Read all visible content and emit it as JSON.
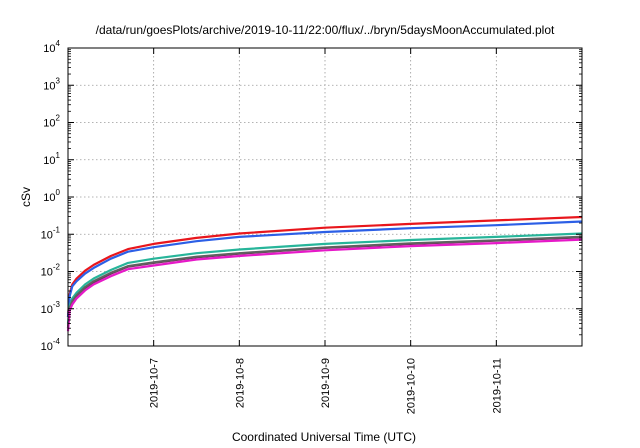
{
  "chart_data": {
    "type": "line",
    "title": "/data/run/goesPlots/archive/2019-10-11/22:00/flux/../bryn/5daysMoonAccumulated.plot",
    "xlabel": "Coordinated Universal Time (UTC)",
    "ylabel": "cSv",
    "y_scale": "log",
    "ylim": [
      0.0001,
      10000
    ],
    "xlim": [
      0,
      6
    ],
    "grid": true,
    "legend": "none",
    "x_ticks": [
      {
        "value": 1,
        "label": "2019-10-7"
      },
      {
        "value": 2,
        "label": "2019-10-8"
      },
      {
        "value": 3,
        "label": "2019-10-9"
      },
      {
        "value": 4,
        "label": "2019-10-10"
      },
      {
        "value": 5,
        "label": "2019-10-11"
      }
    ],
    "y_ticks": [
      {
        "value": 0.0001,
        "base": "10",
        "exp": "-4"
      },
      {
        "value": 0.001,
        "base": "10",
        "exp": "-3"
      },
      {
        "value": 0.01,
        "base": "10",
        "exp": "-2"
      },
      {
        "value": 0.1,
        "base": "10",
        "exp": "-1"
      },
      {
        "value": 1,
        "base": "10",
        "exp": "0"
      },
      {
        "value": 10,
        "base": "10",
        "exp": "1"
      },
      {
        "value": 100,
        "base": "10",
        "exp": "2"
      },
      {
        "value": 1000,
        "base": "10",
        "exp": "3"
      },
      {
        "value": 10000,
        "base": "10",
        "exp": "4"
      }
    ],
    "x": [
      0,
      0.02,
      0.05,
      0.1,
      0.2,
      0.3,
      0.5,
      0.7,
      1.0,
      1.5,
      2.0,
      3.0,
      4.0,
      5.0,
      6.0
    ],
    "series": [
      {
        "color": "#e8161c",
        "values": [
          0.0006,
          0.0025,
          0.0045,
          0.0065,
          0.0105,
          0.015,
          0.026,
          0.04,
          0.055,
          0.08,
          0.105,
          0.15,
          0.19,
          0.235,
          0.29
        ]
      },
      {
        "color": "#2c5fe6",
        "values": [
          0.0006,
          0.0022,
          0.004,
          0.0055,
          0.0088,
          0.0125,
          0.022,
          0.034,
          0.045,
          0.065,
          0.085,
          0.115,
          0.145,
          0.175,
          0.22
        ]
      },
      {
        "color": "#27b59a",
        "values": [
          0.0004,
          0.0012,
          0.0019,
          0.0027,
          0.0045,
          0.0065,
          0.011,
          0.017,
          0.022,
          0.031,
          0.039,
          0.055,
          0.07,
          0.085,
          0.105
        ]
      },
      {
        "color": "#7a2058",
        "values": [
          0.0003,
          0.001,
          0.0015,
          0.0022,
          0.0036,
          0.0052,
          0.0088,
          0.0135,
          0.017,
          0.024,
          0.03,
          0.043,
          0.055,
          0.067,
          0.083
        ]
      },
      {
        "color": "#606060",
        "values": [
          0.0003,
          0.00105,
          0.0016,
          0.0023,
          0.0038,
          0.0055,
          0.0092,
          0.014,
          0.0175,
          0.025,
          0.031,
          0.044,
          0.057,
          0.069,
          0.086
        ]
      },
      {
        "color": "#e619c8",
        "values": [
          0.00025,
          0.0009,
          0.0013,
          0.0019,
          0.0031,
          0.0045,
          0.0075,
          0.0115,
          0.0145,
          0.021,
          0.026,
          0.037,
          0.048,
          0.058,
          0.072
        ]
      }
    ]
  }
}
